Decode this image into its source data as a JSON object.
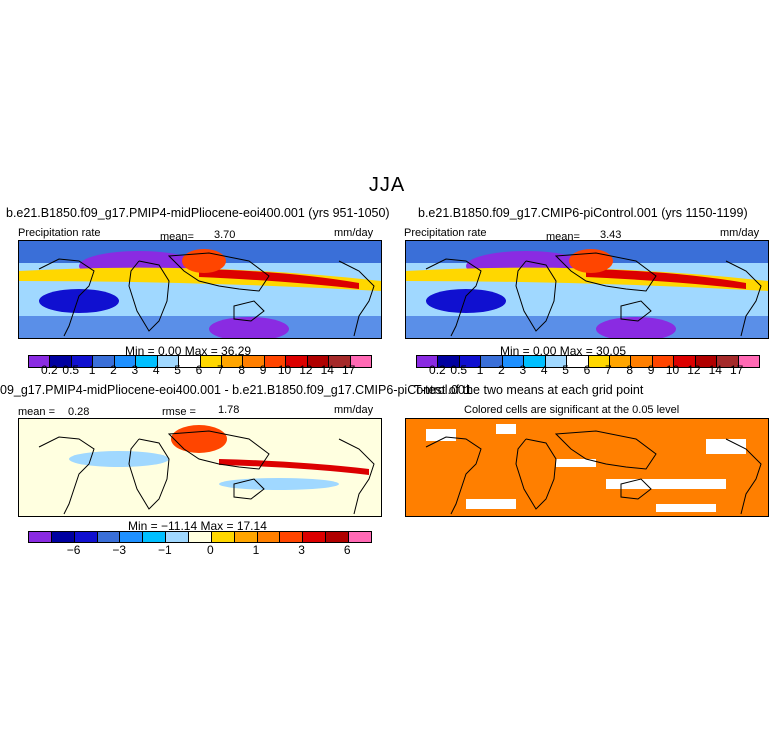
{
  "page": {
    "title": "JJA"
  },
  "panels": {
    "top_left": {
      "run": "b.e21.B1850.f09_g17.PMIP4-midPliocene-eoi400.001 (yrs 951-1050)",
      "variable": "Precipitation rate",
      "stat_label": "mean=",
      "stat_value": "3.70",
      "units": "mm/day",
      "minmax": "Min =    0.00  Max =   36.29"
    },
    "top_right": {
      "run": "b.e21.B1850.f09_g17.CMIP6-piControl.001 (yrs 1150-1199)",
      "variable": "Precipitation rate",
      "stat_label": "mean=",
      "stat_value": "3.43",
      "units": "mm/day",
      "minmax": "Min =    0.00  Max =   30.05"
    },
    "bottom_left": {
      "run": "09_g17.PMIP4-midPliocene-eoi400.001 - b.e21.B1850.f09_g17.CMIP6-piControl.001",
      "mean_label": "mean =",
      "mean_value": "0.28",
      "rmse_label": "rmse =",
      "rmse_value": "1.78",
      "units": "mm/day",
      "minmax": "Min = −11.14  Max =   17.14"
    },
    "bottom_right": {
      "run": "T-test of the two means at each grid point",
      "caption": "Colored cells are significant at the 0.05 level"
    }
  },
  "colorbars": {
    "precip": {
      "colors": [
        "#8a2be2",
        "#0000a0",
        "#1010d0",
        "#3a6fd8",
        "#1e90ff",
        "#00bfff",
        "#a0d8ff",
        "#ffffff",
        "#ffd700",
        "#ffa500",
        "#ff7f00",
        "#ff4500",
        "#dc0000",
        "#b00000",
        "#a52a2a",
        "#ff69b4"
      ],
      "labels": [
        "0.2",
        "0.5",
        "1",
        "2",
        "3",
        "4",
        "5",
        "6",
        "7",
        "8",
        "9",
        "10",
        "12",
        "14",
        "17"
      ]
    },
    "diff": {
      "colors": [
        "#8a2be2",
        "#0000a0",
        "#1010d0",
        "#3a6fd8",
        "#1e90ff",
        "#00bfff",
        "#a0d8ff",
        "#ffffe0",
        "#ffd700",
        "#ffa500",
        "#ff7f00",
        "#ff4500",
        "#dc0000",
        "#b00000",
        "#ff69b4"
      ],
      "labels": [
        "−6",
        "−3",
        "−1",
        "0",
        "1",
        "3",
        "6"
      ]
    },
    "ttest_color": "#ff7f00"
  }
}
